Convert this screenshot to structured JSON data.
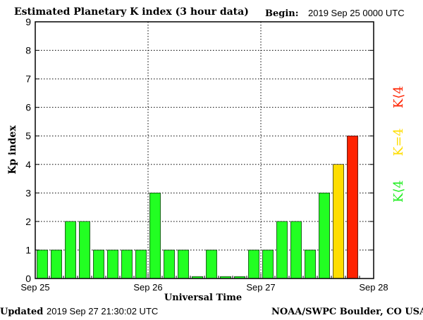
{
  "header": {
    "title": "Estimated Planetary K index (3 hour data)",
    "begin_label": "Begin:",
    "begin_value": "2019 Sep 25 0000 UTC"
  },
  "footer": {
    "updated_label": "Updated",
    "updated_value": "2019 Sep 27 21:30:02 UTC",
    "source": "NOAA/SWPC Boulder, CO USA"
  },
  "legend": [
    {
      "text": "K⟨4",
      "color": "#ff2200"
    },
    {
      "text": "K=4",
      "color": "#ffdd00"
    },
    {
      "text": "K⟨4",
      "color": "#22ee22"
    }
  ],
  "colors": {
    "low": "#22ff22",
    "four": "#ffdd00",
    "high": "#ff2200",
    "bar_stroke": "#000000",
    "grid": "#000000"
  },
  "chart_data": {
    "type": "bar",
    "xlabel": "Universal Time",
    "ylabel": "Kp index",
    "ylim": [
      0,
      9
    ],
    "yticks": [
      "0",
      "1",
      "2",
      "3",
      "4",
      "5",
      "6",
      "7",
      "8",
      "9"
    ],
    "xticks": [
      "Sep 25",
      "Sep 26",
      "Sep 27",
      "Sep 28"
    ],
    "bins_per_day": 8,
    "grid": true,
    "values": [
      1,
      1,
      2,
      2,
      1,
      1,
      1,
      1,
      3,
      1,
      1,
      0.07,
      1,
      0.07,
      0.07,
      1,
      1,
      2,
      2,
      1,
      3,
      4,
      5
    ]
  }
}
